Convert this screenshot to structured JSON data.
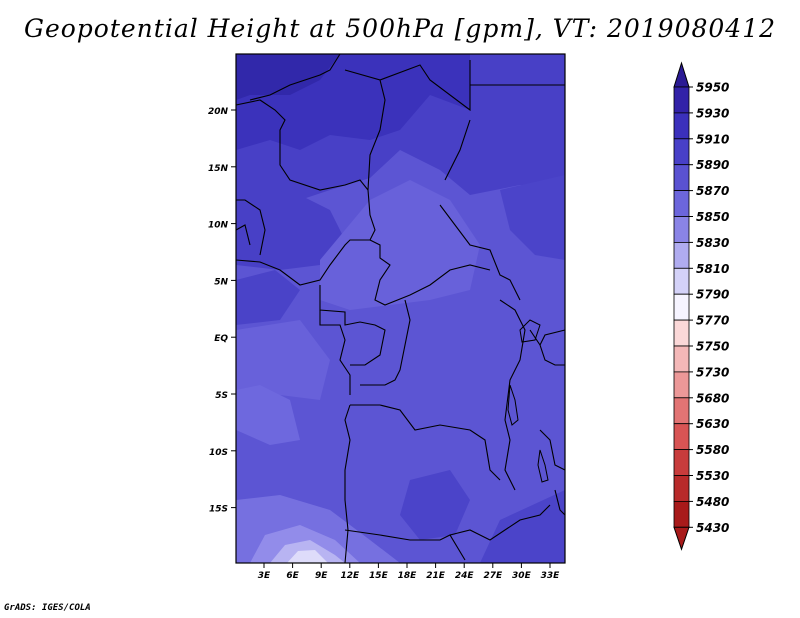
{
  "title": "Geopotential Height at 500hPa [gpm], VT: 2019080412",
  "footer": "GrADS: IGES/COLA",
  "map": {
    "lat_labels": [
      "20N",
      "15N",
      "10N",
      "5N",
      "EQ",
      "5S",
      "10S",
      "15S"
    ],
    "lon_labels": [
      "3E",
      "6E",
      "9E",
      "12E",
      "15E",
      "18E",
      "21E",
      "24E",
      "27E",
      "30E",
      "33E"
    ]
  },
  "colorbar": {
    "levels": [
      "5950",
      "5930",
      "5910",
      "5890",
      "5870",
      "5850",
      "5830",
      "5810",
      "5790",
      "5770",
      "5750",
      "5730",
      "5680",
      "5630",
      "5580",
      "5530",
      "5480",
      "5430"
    ],
    "colors": [
      "#2a1a94",
      "#3222a8",
      "#3b30bc",
      "#4840c8",
      "#5a52d2",
      "#6c66dc",
      "#8a84e6",
      "#b0acf0",
      "#d4d2f8",
      "#f6f4ff",
      "#fbd8d8",
      "#f4b8b8",
      "#ec9898",
      "#e27474",
      "#d85454",
      "#c83c3c",
      "#b82a2a",
      "#a81a1a"
    ]
  }
}
